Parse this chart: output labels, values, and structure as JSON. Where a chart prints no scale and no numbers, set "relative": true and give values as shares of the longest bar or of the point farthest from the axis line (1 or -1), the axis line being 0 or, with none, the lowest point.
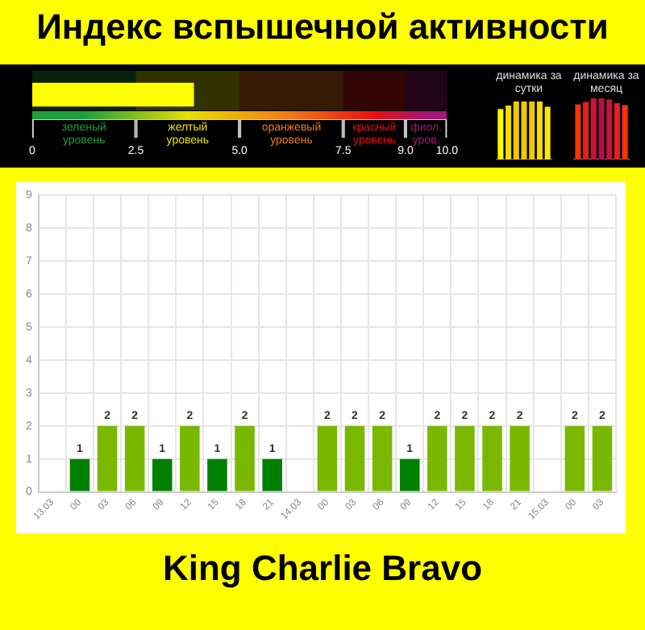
{
  "chart_data": [
    {
      "type": "bar",
      "title": "Индекс вспышечной активности",
      "orientation": "horizontal",
      "categories": [
        null
      ],
      "values": [
        3.9
      ],
      "color": "#ffff00",
      "xlim": [
        0,
        10
      ],
      "xticks": [
        0,
        2.5,
        {
          "value": 5,
          "label": "5.0"
        },
        7.5,
        {
          "value": 9,
          "label": "9.0"
        },
        {
          "value": 10,
          "label": "10.0"
        }
      ],
      "bands": [
        {
          "axis": "x",
          "from": 0,
          "to": 2.5,
          "label": "зеленый уровень",
          "color": "#1e9e3c"
        },
        {
          "axis": "x",
          "from": 2.5,
          "to": 5,
          "label": "желтый уровень",
          "color": "#e8e000"
        },
        {
          "axis": "x",
          "from": 5,
          "to": 7.5,
          "label": "оранжевый уровень",
          "color": "#f07818"
        },
        {
          "axis": "x",
          "from": 7.5,
          "to": 9,
          "label": "красный уровень",
          "color": "#e81010"
        },
        {
          "axis": "x",
          "from": 9,
          "to": 10,
          "label": "фиол. уров.",
          "color": "#a01878"
        }
      ]
    },
    {
      "type": "bar",
      "title": "динамика за сутки",
      "relative": true,
      "categories": [
        null,
        null,
        null,
        null,
        null,
        null,
        null
      ],
      "values": [
        0.87,
        0.93,
        1,
        1,
        1,
        1,
        0.91
      ],
      "colors": [
        "#ffff00",
        "#f5dc00",
        "#f0c800",
        "#f0c800",
        "#f0c800",
        "#f5dc00",
        "#ffe800"
      ]
    },
    {
      "type": "bar",
      "title": "динамика за месяц",
      "relative": true,
      "categories": [
        null,
        null,
        null,
        null,
        null,
        null,
        null
      ],
      "values": [
        0.9,
        0.94,
        1,
        1,
        0.98,
        0.92,
        0.89
      ],
      "colors": [
        "#ff3300",
        "#e61e1e",
        "#c8143c",
        "#b4104a",
        "#c8143c",
        "#e61e1e",
        "#ff3300"
      ]
    },
    {
      "type": "bar",
      "categories": [
        "13.03",
        "00",
        "03",
        "06",
        "09",
        "12",
        "15",
        "18",
        "21",
        "14.03",
        "00",
        "03",
        "06",
        "09",
        "12",
        "15",
        "18",
        "21",
        "15.03",
        "00",
        "03"
      ],
      "values": [
        0,
        1,
        2,
        2,
        1,
        2,
        1,
        2,
        1,
        0,
        2,
        2,
        2,
        1,
        2,
        2,
        2,
        2,
        0,
        2,
        2
      ],
      "colors": [
        "#008000",
        "#008000",
        "#7ab800",
        "#7ab800",
        "#008000",
        "#7ab800",
        "#008000",
        "#7ab800",
        "#008000",
        "#008000",
        "#7ab800",
        "#7ab800",
        "#7ab800",
        "#008000",
        "#7ab800",
        "#7ab800",
        "#7ab800",
        "#7ab800",
        "#008000",
        "#7ab800",
        "#7ab800"
      ],
      "value_labels": [
        null,
        "1",
        "2",
        "2",
        "1",
        "2",
        "1",
        "2",
        "1",
        null,
        "2",
        "2",
        "2",
        "1",
        "2",
        "2",
        "2",
        "2",
        null,
        "2",
        "2"
      ],
      "ylim": [
        0,
        9
      ],
      "yticks": [
        0,
        1,
        2,
        3,
        4,
        5,
        6,
        7,
        8,
        9
      ],
      "grid": true,
      "annotations": [
        "King Charlie Bravo"
      ]
    }
  ]
}
